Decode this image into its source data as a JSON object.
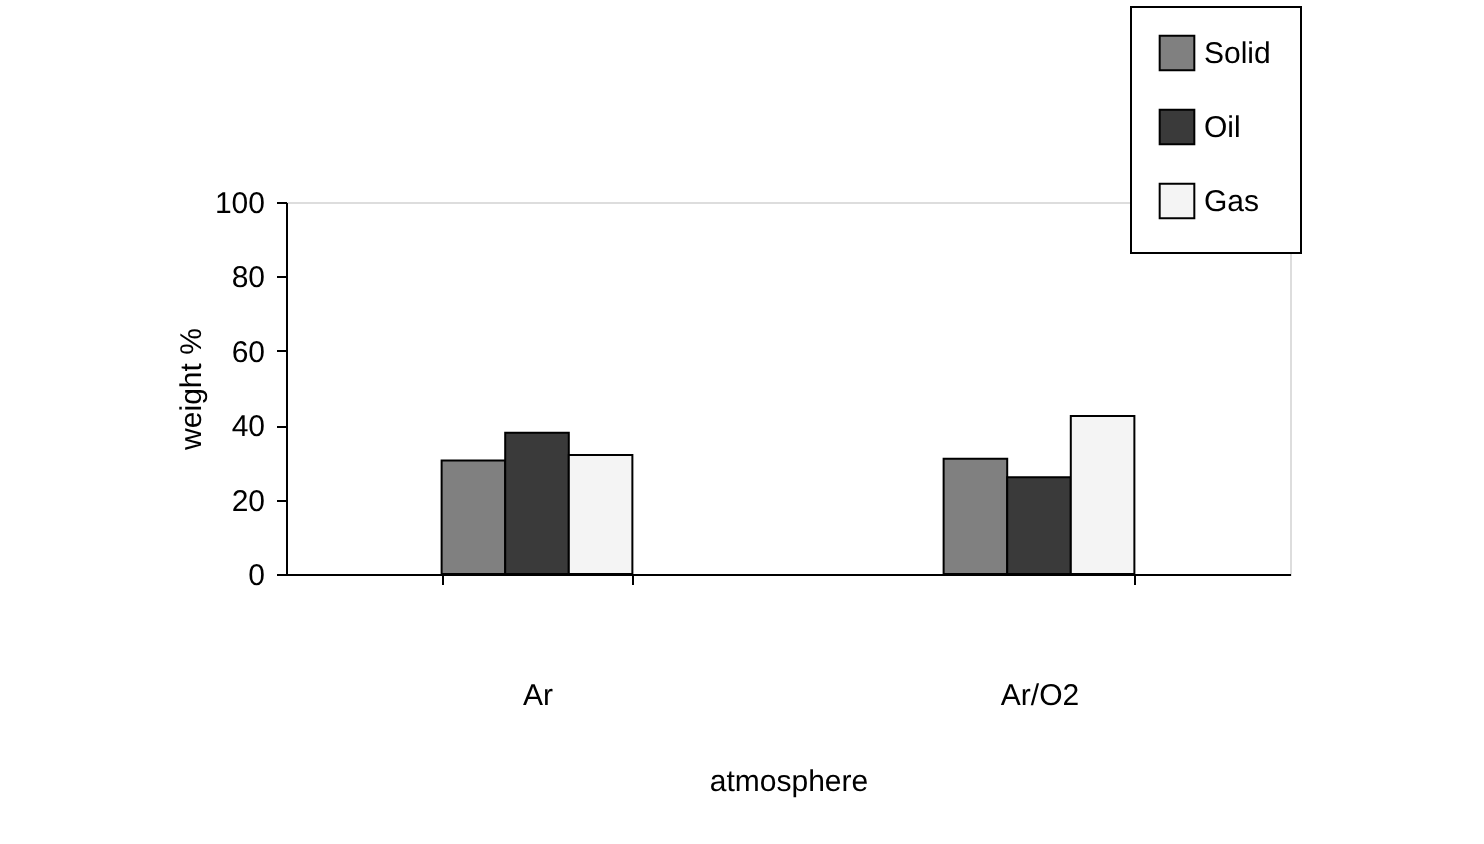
{
  "chart_data": {
    "type": "bar",
    "xlabel": "atmosphere",
    "ylabel": "weight %",
    "categories": [
      "Ar",
      "Ar/O2"
    ],
    "series": [
      {
        "name": "Solid",
        "color": "#808080",
        "values": [
          30.5,
          31
        ]
      },
      {
        "name": "Oil",
        "color": "#3a3a3a",
        "values": [
          38,
          26
        ]
      },
      {
        "name": "Gas",
        "color": "#f4f4f4",
        "values": [
          32,
          42.5
        ]
      }
    ],
    "ylim": [
      0,
      100
    ],
    "yticks": [
      0,
      20,
      40,
      60,
      80,
      100
    ],
    "grid": false,
    "legend": "top right"
  }
}
